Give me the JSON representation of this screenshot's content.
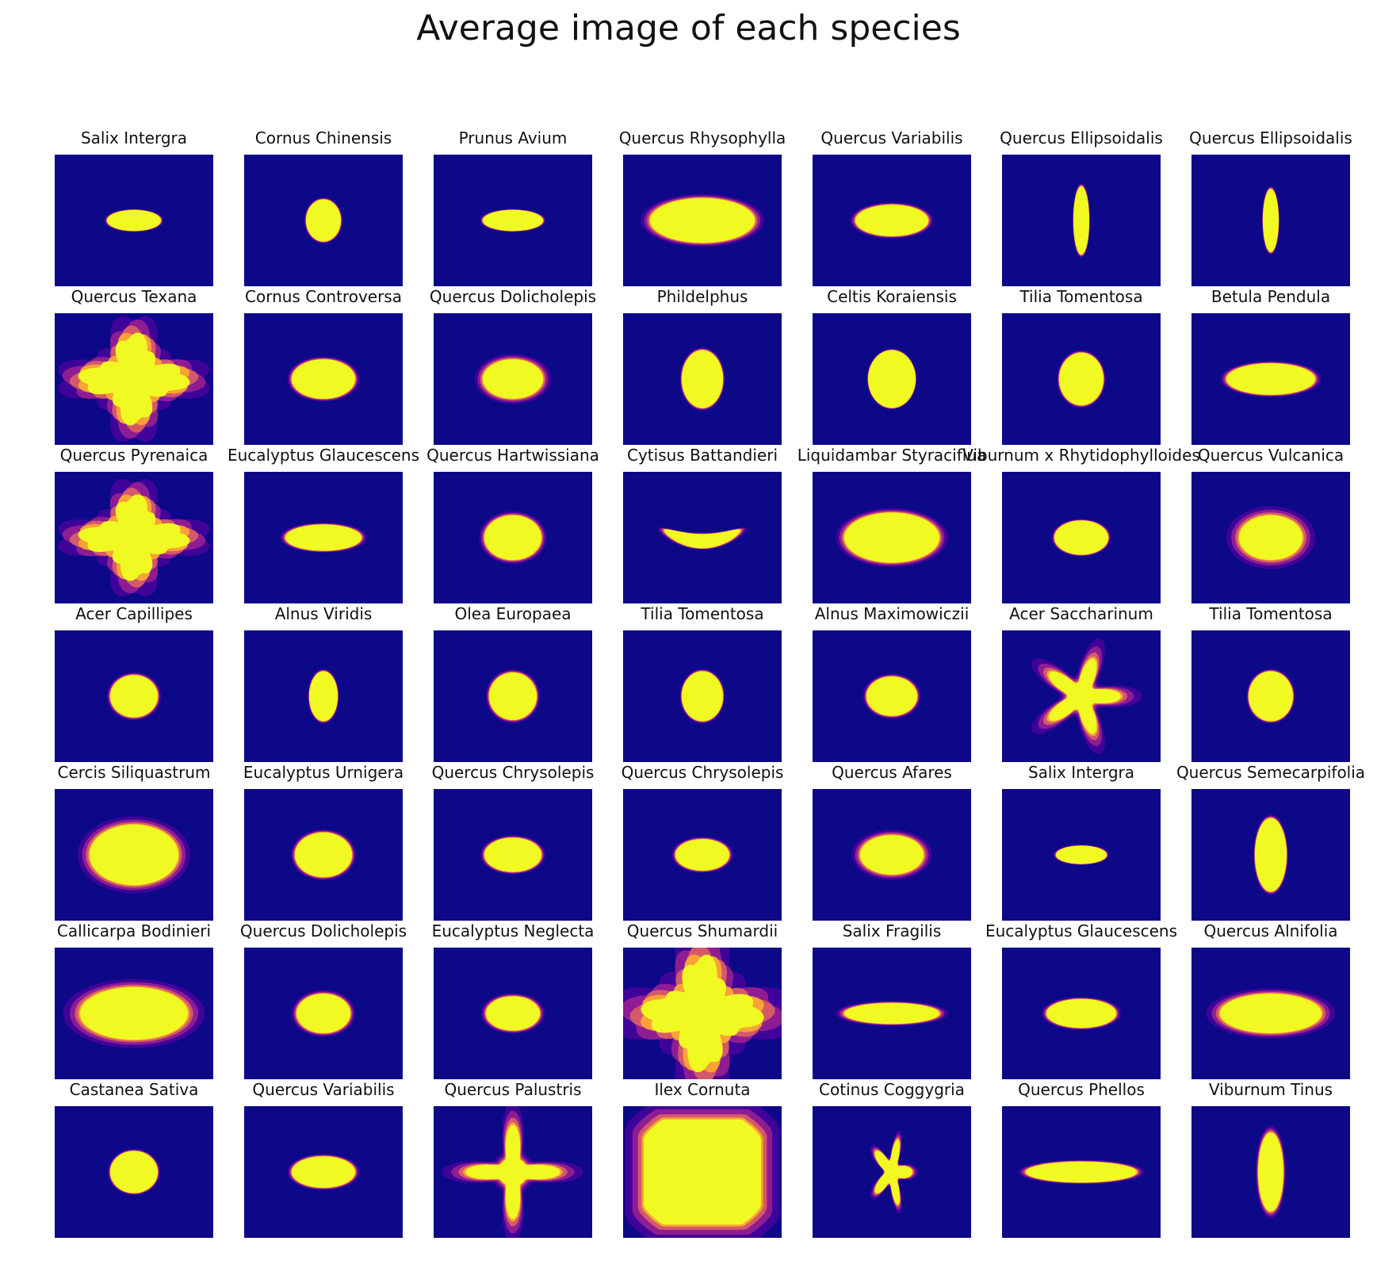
{
  "chart_data": {
    "type": "image-grid",
    "title": "Average image of each species",
    "rows": 7,
    "cols": 7,
    "colormap": [
      "#0d0887",
      "#6a00a8",
      "#b12a90",
      "#e16462",
      "#fca636",
      "#f0f921"
    ],
    "background_color": "#0d0887",
    "panels": [
      {
        "label": "Salix Intergra",
        "shape": "ellipse",
        "rx": 0.17,
        "ry": 0.08,
        "fuzz": 0.1
      },
      {
        "label": "Cornus Chinensis",
        "shape": "ellipse",
        "rx": 0.11,
        "ry": 0.16,
        "fuzz": 0.1
      },
      {
        "label": "Prunus Avium",
        "shape": "ellipse",
        "rx": 0.19,
        "ry": 0.08,
        "fuzz": 0.1
      },
      {
        "label": "Quercus Rhysophylla",
        "shape": "ellipse",
        "rx": 0.33,
        "ry": 0.17,
        "fuzz": 0.2
      },
      {
        "label": "Quercus Variabilis",
        "shape": "ellipse",
        "rx": 0.23,
        "ry": 0.12,
        "fuzz": 0.15
      },
      {
        "label": "Quercus Ellipsoidalis",
        "shape": "ellipse",
        "rx": 0.05,
        "ry": 0.26,
        "fuzz": 0.1
      },
      {
        "label": "Quercus Ellipsoidalis",
        "shape": "ellipse",
        "rx": 0.05,
        "ry": 0.24,
        "fuzz": 0.1
      },
      {
        "label": "Quercus Texana",
        "shape": "lobed",
        "rx": 0.3,
        "ry": 0.3,
        "fuzz": 0.5
      },
      {
        "label": "Cornus Controversa",
        "shape": "ellipse",
        "rx": 0.2,
        "ry": 0.15,
        "fuzz": 0.15
      },
      {
        "label": "Quercus Dolicholepis",
        "shape": "ellipse",
        "rx": 0.19,
        "ry": 0.15,
        "fuzz": 0.3
      },
      {
        "label": "Phildelphus",
        "shape": "ellipse",
        "rx": 0.13,
        "ry": 0.22,
        "fuzz": 0.1
      },
      {
        "label": "Celtis Koraiensis",
        "shape": "ellipse",
        "rx": 0.15,
        "ry": 0.22,
        "fuzz": 0.05
      },
      {
        "label": "Tilia Tomentosa",
        "shape": "ellipse",
        "rx": 0.14,
        "ry": 0.2,
        "fuzz": 0.1
      },
      {
        "label": "Betula Pendula",
        "shape": "ellipse",
        "rx": 0.28,
        "ry": 0.12,
        "fuzz": 0.15
      },
      {
        "label": "Quercus Pyrenaica",
        "shape": "lobed",
        "rx": 0.3,
        "ry": 0.28,
        "fuzz": 0.5
      },
      {
        "label": "Eucalyptus Glaucescens",
        "shape": "ellipse",
        "rx": 0.24,
        "ry": 0.1,
        "fuzz": 0.15
      },
      {
        "label": "Quercus Hartwissiana",
        "shape": "ellipse",
        "rx": 0.18,
        "ry": 0.17,
        "fuzz": 0.2
      },
      {
        "label": "Cytisus Battandieri",
        "shape": "crescent",
        "rx": 0.24,
        "ry": 0.09,
        "fuzz": 0.2
      },
      {
        "label": "Liquidambar Styraciflua",
        "shape": "ellipse",
        "rx": 0.3,
        "ry": 0.19,
        "fuzz": 0.2
      },
      {
        "label": "Viburnum x Rhytidophylloides",
        "shape": "ellipse",
        "rx": 0.17,
        "ry": 0.13,
        "fuzz": 0.1
      },
      {
        "label": "Quercus Vulcanica",
        "shape": "ellipse",
        "rx": 0.2,
        "ry": 0.17,
        "fuzz": 0.45
      },
      {
        "label": "Acer Capillipes",
        "shape": "ellipse",
        "rx": 0.15,
        "ry": 0.16,
        "fuzz": 0.15
      },
      {
        "label": "Alnus Viridis",
        "shape": "ellipse",
        "rx": 0.09,
        "ry": 0.19,
        "fuzz": 0.1
      },
      {
        "label": "Olea Europaea",
        "shape": "ellipse",
        "rx": 0.15,
        "ry": 0.18,
        "fuzz": 0.15
      },
      {
        "label": "Tilia Tomentosa",
        "shape": "ellipse",
        "rx": 0.13,
        "ry": 0.19,
        "fuzz": 0.1
      },
      {
        "label": "Alnus Maximowiczii",
        "shape": "ellipse",
        "rx": 0.16,
        "ry": 0.15,
        "fuzz": 0.15
      },
      {
        "label": "Acer Saccharinum",
        "shape": "star",
        "rx": 0.25,
        "ry": 0.3,
        "fuzz": 0.6
      },
      {
        "label": "Tilia Tomentosa",
        "shape": "ellipse",
        "rx": 0.14,
        "ry": 0.19,
        "fuzz": 0.1
      },
      {
        "label": "Cercis Siliquastrum",
        "shape": "ellipse",
        "rx": 0.28,
        "ry": 0.23,
        "fuzz": 0.3
      },
      {
        "label": "Eucalyptus Urnigera",
        "shape": "ellipse",
        "rx": 0.18,
        "ry": 0.17,
        "fuzz": 0.15
      },
      {
        "label": "Quercus Chrysolepis",
        "shape": "ellipse",
        "rx": 0.18,
        "ry": 0.13,
        "fuzz": 0.15
      },
      {
        "label": "Quercus Chrysolepis",
        "shape": "ellipse",
        "rx": 0.17,
        "ry": 0.12,
        "fuzz": 0.15
      },
      {
        "label": "Quercus Afares",
        "shape": "ellipse",
        "rx": 0.2,
        "ry": 0.15,
        "fuzz": 0.3
      },
      {
        "label": "Salix Intergra",
        "shape": "ellipse",
        "rx": 0.16,
        "ry": 0.07,
        "fuzz": 0.1
      },
      {
        "label": "Quercus Semecarpifolia",
        "shape": "ellipse",
        "rx": 0.1,
        "ry": 0.28,
        "fuzz": 0.1
      },
      {
        "label": "Callicarpa Bodinieri",
        "shape": "ellipse",
        "rx": 0.34,
        "ry": 0.2,
        "fuzz": 0.35
      },
      {
        "label": "Quercus Dolicholepis",
        "shape": "ellipse",
        "rx": 0.17,
        "ry": 0.15,
        "fuzz": 0.2
      },
      {
        "label": "Eucalyptus Neglecta",
        "shape": "ellipse",
        "rx": 0.17,
        "ry": 0.13,
        "fuzz": 0.2
      },
      {
        "label": "Quercus Shumardii",
        "shape": "lobed",
        "rx": 0.33,
        "ry": 0.38,
        "fuzz": 0.6
      },
      {
        "label": "Salix Fragilis",
        "shape": "ellipse",
        "rx": 0.3,
        "ry": 0.08,
        "fuzz": 0.2
      },
      {
        "label": "Eucalyptus Glaucescens",
        "shape": "ellipse",
        "rx": 0.22,
        "ry": 0.11,
        "fuzz": 0.15
      },
      {
        "label": "Quercus Alnifolia",
        "shape": "ellipse",
        "rx": 0.32,
        "ry": 0.15,
        "fuzz": 0.3
      },
      {
        "label": "Castanea Sativa",
        "shape": "ellipse",
        "rx": 0.15,
        "ry": 0.16,
        "fuzz": 0.1
      },
      {
        "label": "Quercus Variabilis",
        "shape": "ellipse",
        "rx": 0.2,
        "ry": 0.12,
        "fuzz": 0.15
      },
      {
        "label": "Quercus Palustris",
        "shape": "cross",
        "rx": 0.3,
        "ry": 0.36,
        "fuzz": 0.55
      },
      {
        "label": "Ilex Cornuta",
        "shape": "box",
        "rx": 0.37,
        "ry": 0.4,
        "fuzz": 0.35
      },
      {
        "label": "Cotinus Coggygria",
        "shape": "star",
        "rx": 0.13,
        "ry": 0.26,
        "fuzz": 0.3
      },
      {
        "label": "Quercus Phellos",
        "shape": "ellipse",
        "rx": 0.35,
        "ry": 0.08,
        "fuzz": 0.15
      },
      {
        "label": "Viburnum Tinus",
        "shape": "ellipse",
        "rx": 0.08,
        "ry": 0.3,
        "fuzz": 0.2
      }
    ]
  }
}
